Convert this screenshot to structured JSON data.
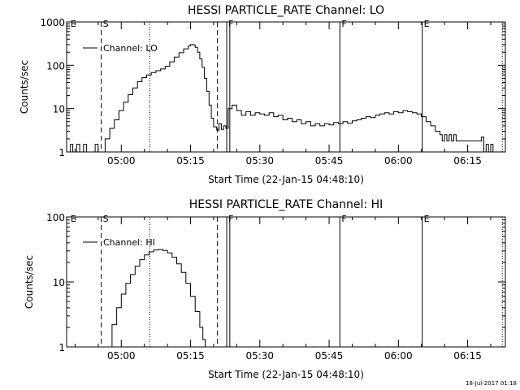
{
  "figure": {
    "timestamp": "18-Jul-2017 01:18",
    "time_origin": "22-Jan-15 04:48:10"
  },
  "chart_data": [
    {
      "type": "line",
      "title": "HESSI PARTICLE_RATE Channel: LO",
      "xlabel": "Start Time (22-Jan-15 04:48:10)",
      "ylabel": "Counts/sec",
      "yscale": "log",
      "ylim": [
        1,
        1000
      ],
      "xlim": [
        "04:48:10",
        "06:23:10"
      ],
      "xticks": [
        "05:00",
        "05:15",
        "05:30",
        "05:45",
        "06:00",
        "06:15"
      ],
      "yticks": [
        "1",
        "10",
        "100",
        "1000"
      ],
      "legend": {
        "entries": [
          "Channel: LO"
        ],
        "position": "top-left"
      },
      "markers": [
        {
          "label": "E",
          "time": "04:48:40",
          "style": "none"
        },
        {
          "label": "S",
          "time": "04:55:40",
          "style": "dashed"
        },
        {
          "label": "",
          "time": "05:06:10",
          "style": "dotted"
        },
        {
          "label": "",
          "time": "05:20:50",
          "style": "dashed"
        },
        {
          "label": "F",
          "time": "05:22:50",
          "style": "solid"
        },
        {
          "label": "",
          "time": "05:23:30",
          "style": "solid"
        },
        {
          "label": "F",
          "time": "05:47:20",
          "style": "solid"
        },
        {
          "label": "E",
          "time": "06:05:10",
          "style": "solid"
        },
        {
          "label": "",
          "time": "06:22:30",
          "style": "dotted"
        }
      ],
      "series": [
        {
          "points": [
            [
              "04:48:10",
              1
            ],
            [
              "04:49:00",
              1.5
            ],
            [
              "04:49:30",
              1
            ],
            [
              "04:50:20",
              1.5
            ],
            [
              "04:51:00",
              1
            ],
            [
              "04:51:50",
              1.5
            ],
            [
              "04:52:30",
              1
            ],
            [
              "04:53:40",
              1
            ],
            [
              "04:54:20",
              1.5
            ],
            [
              "04:55:00",
              1
            ],
            [
              "04:55:50",
              1
            ],
            [
              "04:56:30",
              2
            ],
            [
              "04:57:30",
              3.5
            ],
            [
              "04:58:30",
              5.5
            ],
            [
              "04:59:30",
              9
            ],
            [
              "05:00:30",
              14
            ],
            [
              "05:01:30",
              21
            ],
            [
              "05:02:30",
              30
            ],
            [
              "05:03:30",
              42
            ],
            [
              "05:04:30",
              52
            ],
            [
              "05:05:30",
              60
            ],
            [
              "05:06:30",
              68
            ],
            [
              "05:07:30",
              75
            ],
            [
              "05:08:30",
              82
            ],
            [
              "05:09:30",
              95
            ],
            [
              "05:10:30",
              120
            ],
            [
              "05:11:30",
              155
            ],
            [
              "05:12:30",
              195
            ],
            [
              "05:13:30",
              240
            ],
            [
              "05:14:30",
              280
            ],
            [
              "05:15:00",
              300
            ],
            [
              "05:15:30",
              295
            ],
            [
              "05:16:00",
              260
            ],
            [
              "05:16:30",
              200
            ],
            [
              "05:17:00",
              140
            ],
            [
              "05:17:30",
              90
            ],
            [
              "05:18:00",
              50
            ],
            [
              "05:18:30",
              25
            ],
            [
              "05:19:00",
              12
            ],
            [
              "05:19:30",
              6
            ],
            [
              "05:20:00",
              3.8
            ],
            [
              "05:20:40",
              3.2
            ],
            [
              "05:21:10",
              4.5
            ],
            [
              "05:21:40",
              3.3
            ],
            [
              "05:22:10",
              4.0
            ],
            [
              "05:22:40",
              3.5
            ],
            [
              "05:23:10",
              10
            ],
            [
              "05:24:00",
              12
            ],
            [
              "05:25:00",
              9
            ],
            [
              "05:26:00",
              7
            ],
            [
              "05:27:00",
              8.5
            ],
            [
              "05:28:00",
              7
            ],
            [
              "05:29:00",
              8
            ],
            [
              "05:30:00",
              7.5
            ],
            [
              "05:31:00",
              7
            ],
            [
              "05:32:00",
              8
            ],
            [
              "05:33:00",
              6.5
            ],
            [
              "05:34:00",
              7
            ],
            [
              "05:35:00",
              5.5
            ],
            [
              "05:36:00",
              6
            ],
            [
              "05:37:00",
              5
            ],
            [
              "05:38:00",
              5.5
            ],
            [
              "05:39:00",
              4.5
            ],
            [
              "05:40:00",
              5
            ],
            [
              "05:41:00",
              4
            ],
            [
              "05:42:00",
              4.5
            ],
            [
              "05:43:00",
              4
            ],
            [
              "05:44:00",
              4.5
            ],
            [
              "05:45:00",
              4.2
            ],
            [
              "05:46:00",
              4.8
            ],
            [
              "05:47:00",
              4.5
            ],
            [
              "05:48:00",
              5
            ],
            [
              "05:49:00",
              4.6
            ],
            [
              "05:50:00",
              5.2
            ],
            [
              "05:51:00",
              5.5
            ],
            [
              "05:52:00",
              6
            ],
            [
              "05:53:00",
              6.5
            ],
            [
              "05:54:00",
              6.2
            ],
            [
              "05:55:00",
              7
            ],
            [
              "05:56:00",
              7.5
            ],
            [
              "05:57:00",
              8
            ],
            [
              "05:58:00",
              7.5
            ],
            [
              "05:59:00",
              8.5
            ],
            [
              "06:00:00",
              8
            ],
            [
              "06:01:00",
              9
            ],
            [
              "06:02:00",
              8.5
            ],
            [
              "06:03:00",
              8
            ],
            [
              "06:04:00",
              7.5
            ],
            [
              "06:05:00",
              6.5
            ],
            [
              "06:06:00",
              5
            ],
            [
              "06:07:00",
              4
            ],
            [
              "06:08:00",
              3
            ],
            [
              "06:09:00",
              2.5
            ],
            [
              "06:09:30",
              1.8
            ],
            [
              "06:10:00",
              2.5
            ],
            [
              "06:10:30",
              1.8
            ],
            [
              "06:11:00",
              2.5
            ],
            [
              "06:11:30",
              1.8
            ],
            [
              "06:12:00",
              2.5
            ],
            [
              "06:12:30",
              1.8
            ],
            [
              "06:13:00",
              1.8
            ],
            [
              "06:14:00",
              1.8
            ],
            [
              "06:15:00",
              1.8
            ],
            [
              "06:16:00",
              1.8
            ],
            [
              "06:17:00",
              1.8
            ],
            [
              "06:18:00",
              2.2
            ],
            [
              "06:18:30",
              1
            ],
            [
              "06:19:00",
              1.5
            ],
            [
              "06:19:30",
              1
            ],
            [
              "06:20:00",
              1.5
            ],
            [
              "06:20:30",
              1
            ]
          ]
        }
      ]
    },
    {
      "type": "line",
      "title": "HESSI PARTICLE_RATE Channel: HI",
      "xlabel": "Start Time (22-Jan-15 04:48:10)",
      "ylabel": "Counts/sec",
      "yscale": "log",
      "ylim": [
        1,
        100
      ],
      "xlim": [
        "04:48:10",
        "06:23:10"
      ],
      "xticks": [
        "05:00",
        "05:15",
        "05:30",
        "05:45",
        "06:00",
        "06:15"
      ],
      "yticks": [
        "1",
        "10",
        "100"
      ],
      "legend": {
        "entries": [
          "Channel: HI"
        ],
        "position": "top-left"
      },
      "markers": [
        {
          "label": "E",
          "time": "04:48:40",
          "style": "none"
        },
        {
          "label": "S",
          "time": "04:55:40",
          "style": "dashed"
        },
        {
          "label": "",
          "time": "05:06:10",
          "style": "dotted"
        },
        {
          "label": "",
          "time": "05:20:50",
          "style": "dashed"
        },
        {
          "label": "F",
          "time": "05:22:50",
          "style": "solid"
        },
        {
          "label": "",
          "time": "05:23:30",
          "style": "solid"
        },
        {
          "label": "F",
          "time": "05:47:20",
          "style": "solid"
        },
        {
          "label": "E",
          "time": "06:05:10",
          "style": "solid"
        },
        {
          "label": "",
          "time": "06:22:30",
          "style": "dotted"
        }
      ],
      "series": [
        {
          "points": [
            [
              "04:57:20",
              1
            ],
            [
              "04:58:00",
              2.2
            ],
            [
              "04:59:00",
              4
            ],
            [
              "05:00:00",
              6.5
            ],
            [
              "05:01:00",
              9.5
            ],
            [
              "05:02:00",
              13
            ],
            [
              "05:03:00",
              17.5
            ],
            [
              "05:04:00",
              22
            ],
            [
              "05:05:00",
              26
            ],
            [
              "05:06:00",
              29
            ],
            [
              "05:07:00",
              31
            ],
            [
              "05:08:00",
              31.5
            ],
            [
              "05:09:00",
              30.5
            ],
            [
              "05:10:00",
              28
            ],
            [
              "05:11:00",
              24
            ],
            [
              "05:12:00",
              19
            ],
            [
              "05:13:00",
              14
            ],
            [
              "05:14:00",
              9.5
            ],
            [
              "05:15:00",
              6
            ],
            [
              "05:16:00",
              3.5
            ],
            [
              "05:17:00",
              2
            ],
            [
              "05:17:40",
              1.3
            ],
            [
              "05:18:10",
              1
            ]
          ]
        }
      ]
    }
  ]
}
